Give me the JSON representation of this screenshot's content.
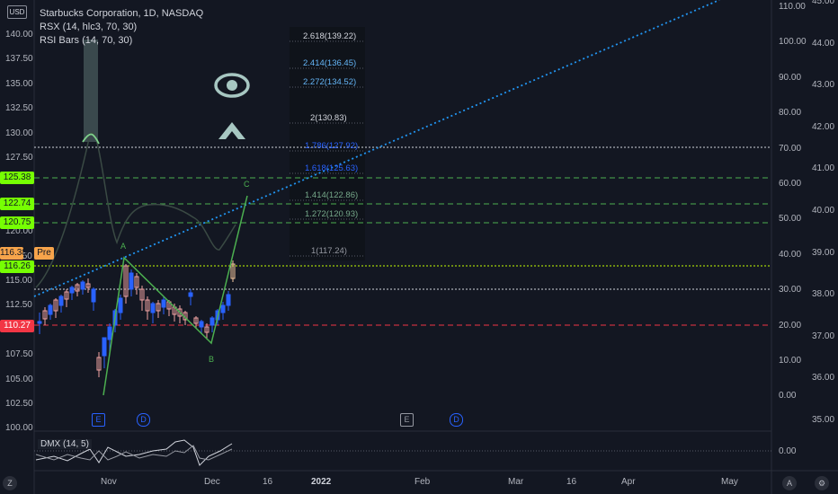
{
  "header": {
    "currency": "USD",
    "title": "Starbucks Corporation, 1D, NASDAQ",
    "indicator1": "RSX (14, hlc3, 70, 30)",
    "indicator2": "RSI Bars (14, 70, 30)"
  },
  "price_axis": [
    "140.00",
    "137.50",
    "135.00",
    "132.50",
    "130.00",
    "127.50",
    "125.00",
    "122.50",
    "120.00",
    "117.50",
    "115.00",
    "112.50",
    "110.00",
    "107.50",
    "105.00",
    "102.50",
    "100.00"
  ],
  "price_tags": {
    "t1": "125.38",
    "t2": "122.74",
    "t3": "120.75",
    "t4": "116.38",
    "t4_suffix": "Pre",
    "t5": "116.26",
    "t6": "110.27"
  },
  "oscillator_axis": [
    "110.00",
    "100.00",
    "90.00",
    "80.00",
    "70.00",
    "60.00",
    "50.00",
    "40.00",
    "30.00",
    "20.00",
    "10.00",
    "0.00"
  ],
  "right_axis": [
    "45.00",
    "44.00",
    "43.00",
    "42.00",
    "41.00",
    "40.00",
    "39.00",
    "38.00",
    "37.00",
    "36.00",
    "35.00"
  ],
  "fib_levels": [
    "2.618(139.22)",
    "2.414(136.45)",
    "2.272(134.52)",
    "2(130.83)",
    "1.786(127.92)",
    "1.618(125.63)",
    "1.414(122.86)",
    "1.272(120.93)",
    "1(117.24)"
  ],
  "pattern_points": {
    "a": "A",
    "b": "B",
    "c": "C"
  },
  "events": {
    "e1": "E",
    "d1": "D",
    "e2": "E",
    "d2": "D"
  },
  "dmx": {
    "label": "DMX (14, 5)",
    "axis": "0.00"
  },
  "time_axis": [
    "Nov",
    "Dec",
    "16",
    "2022",
    "Feb",
    "Mar",
    "16",
    "Apr",
    "May"
  ],
  "bottom_buttons": {
    "z": "Z",
    "a": "A",
    "settings": "⚙"
  },
  "colors": {
    "bg": "#131722",
    "up": "#2962ff",
    "down": "#f0a3a3",
    "green": "#4caf50",
    "red": "#f23645",
    "lime": "#76ff03"
  }
}
